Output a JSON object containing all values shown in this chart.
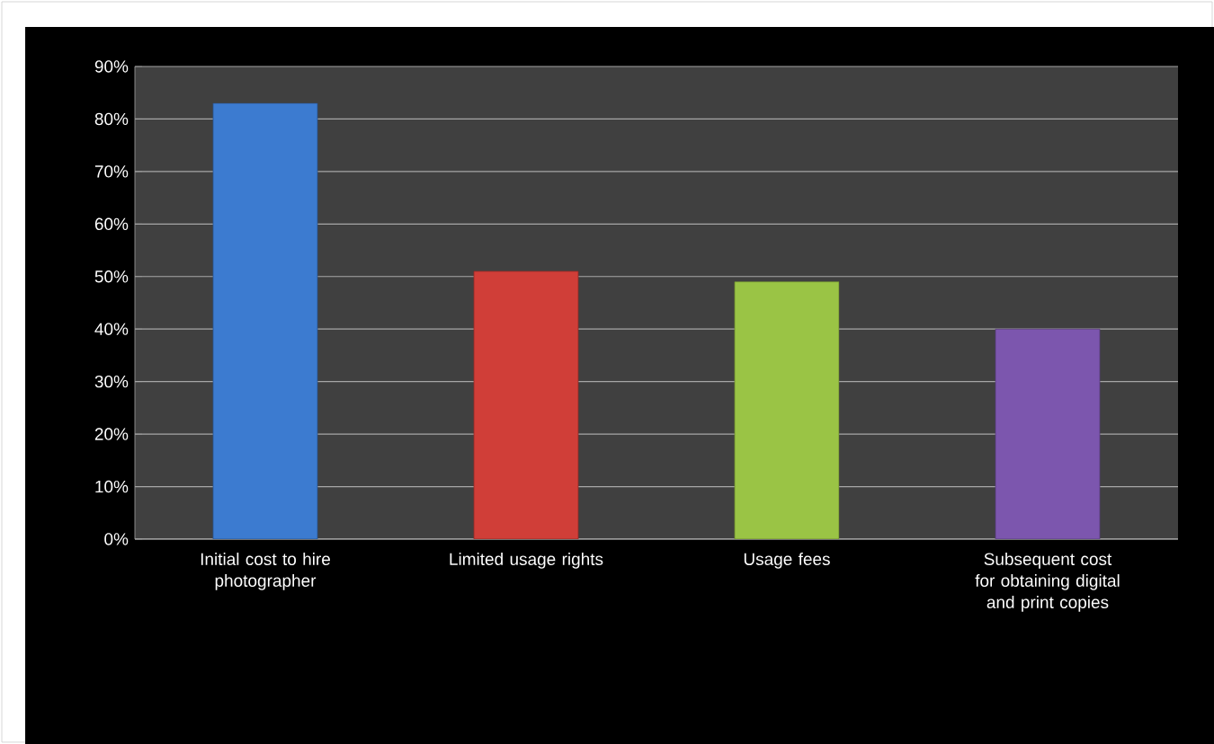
{
  "chart_data": {
    "type": "bar",
    "categories": [
      "Initial cost to hire photographer",
      "Limited usage rights",
      "Usage fees",
      "Subsequent cost for obtaining digital and print copies"
    ],
    "values": [
      83,
      51,
      49,
      40
    ],
    "colors": [
      "#3c7bd0",
      "#d03e38",
      "#9ac445",
      "#7c56ae"
    ],
    "ylim": [
      0,
      90
    ],
    "yticks": [
      {
        "value": 0,
        "label": "0%"
      },
      {
        "value": 10,
        "label": "10%"
      },
      {
        "value": 20,
        "label": "20%"
      },
      {
        "value": 30,
        "label": "30%"
      },
      {
        "value": 40,
        "label": "40%"
      },
      {
        "value": 50,
        "label": "50%"
      },
      {
        "value": 60,
        "label": "60%"
      },
      {
        "value": 70,
        "label": "70%"
      },
      {
        "value": 80,
        "label": "80%"
      },
      {
        "value": 90,
        "label": "90%"
      }
    ],
    "grid": "y"
  }
}
